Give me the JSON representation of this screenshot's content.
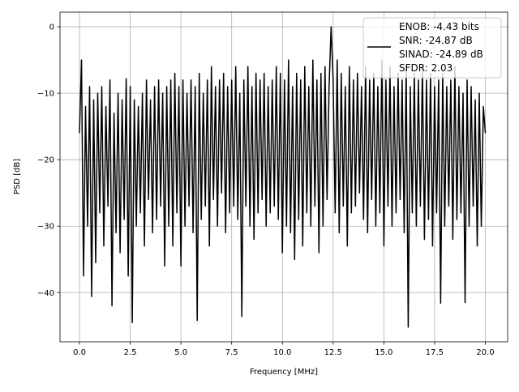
{
  "chart_data": {
    "type": "line",
    "title": "",
    "xlabel": "Frequency [MHz]",
    "ylabel": "PSD [dB]",
    "xlim": [
      -0.96,
      21.1
    ],
    "ylim": [
      -47.4,
      2.2
    ],
    "grid": true,
    "xticks": [
      0.0,
      2.5,
      5.0,
      7.5,
      10.0,
      12.5,
      15.0,
      17.5,
      20.0
    ],
    "xtick_labels": [
      "0.0",
      "2.5",
      "5.0",
      "7.5",
      "10.0",
      "12.5",
      "15.0",
      "17.5",
      "20.0"
    ],
    "yticks": [
      0,
      -10,
      -20,
      -30,
      -40
    ],
    "ytick_labels": [
      "0",
      "−10",
      "−20",
      "−30",
      "−40"
    ],
    "legend_position": "top-right",
    "legend": {
      "lines": [
        "ENOB: -4.43 bits",
        "SNR: -24.87 dB",
        "SINAD: -24.89 dB",
        "SFDR: 2.03"
      ]
    },
    "series": [
      {
        "color": "#000000",
        "x_start": 0.0,
        "x_step": 0.1,
        "values": [
          -16,
          -5,
          -37.5,
          -12,
          -30,
          -9,
          -40.6,
          -11,
          -35.5,
          -10,
          -28,
          -9,
          -33,
          -12,
          -27,
          -8,
          -42,
          -13,
          -31,
          -10,
          -34,
          -11,
          -29,
          -7.8,
          -37.5,
          -9,
          -44.5,
          -11,
          -30,
          -12,
          -28,
          -10,
          -33,
          -8,
          -26,
          -11,
          -31,
          -9,
          -29,
          -8,
          -27,
          -10,
          -36,
          -9,
          -30,
          -8,
          -33,
          -7,
          -28,
          -9,
          -36,
          -8,
          -30,
          -10,
          -27,
          -8,
          -31,
          -9,
          -44.2,
          -7,
          -29,
          -10,
          -27,
          -8,
          -33,
          -6,
          -26,
          -9,
          -30,
          -8,
          -25,
          -7,
          -31,
          -9,
          -28,
          -8,
          -27,
          -6,
          -29,
          -10,
          -43.6,
          -8,
          -27,
          -6,
          -30,
          -9,
          -32,
          -7,
          -28,
          -8,
          -26,
          -7,
          -30,
          -9,
          -28,
          -8,
          -27,
          -6,
          -29,
          -7,
          -34,
          -8,
          -30,
          -5,
          -31,
          -9,
          -35,
          -7,
          -29,
          -8,
          -33,
          -6,
          -28,
          -9,
          -30,
          -5,
          -27,
          -8,
          -34,
          -7,
          -30,
          -6,
          -26,
          -9,
          0,
          -8,
          -28,
          -5,
          -31,
          -7,
          -27,
          -9,
          -33,
          -6,
          -28,
          -8,
          -27,
          -7,
          -25,
          -9,
          -29,
          -6,
          -31,
          -8,
          -26,
          -7,
          -30,
          -9,
          -28,
          -5,
          -33,
          -8,
          -27,
          -6,
          -30,
          -9,
          -28,
          -7,
          -26,
          -8,
          -31,
          -6,
          -45.2,
          -9,
          -28,
          -7,
          -30,
          -8,
          -27,
          -6,
          -32,
          -8,
          -29,
          -7,
          -33,
          -9,
          -28,
          -8,
          -41.6,
          -7,
          -30,
          -9,
          -27,
          -8,
          -32,
          -6,
          -29,
          -9,
          -28,
          -10,
          -41.5,
          -8,
          -30,
          -9,
          -27,
          -11,
          -33,
          -10,
          -30,
          -12,
          -16
        ]
      }
    ]
  }
}
